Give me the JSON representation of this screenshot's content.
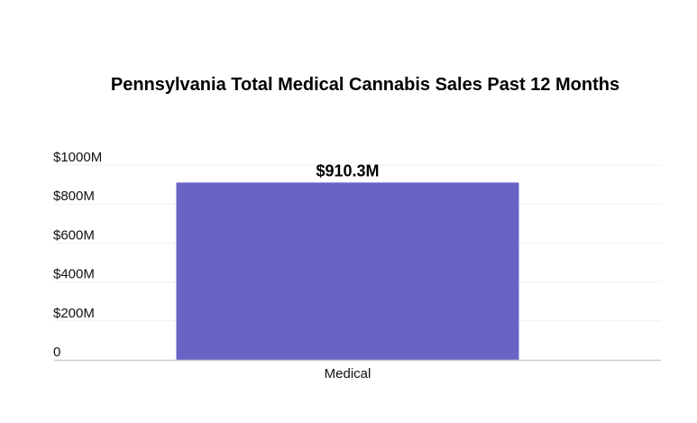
{
  "chart_data": {
    "type": "bar",
    "title": "Pennsylvania Total Medical Cannabis Sales Past 12 Months",
    "xlabel": "",
    "ylabel": "",
    "categories": [
      "Medical"
    ],
    "values": [
      910.3
    ],
    "data_labels": [
      "$910.3M"
    ],
    "ylim": [
      0,
      1000
    ],
    "yticks": [
      0,
      200,
      400,
      600,
      800,
      1000
    ],
    "ytick_labels": [
      "0",
      "$200M",
      "$400M",
      "$600M",
      "$800M",
      "$1000M"
    ],
    "grid": true,
    "legend": "none",
    "colors": {
      "bar": "#6963c6",
      "grid": "#f1f1f1",
      "axis": "#cccccc"
    }
  }
}
